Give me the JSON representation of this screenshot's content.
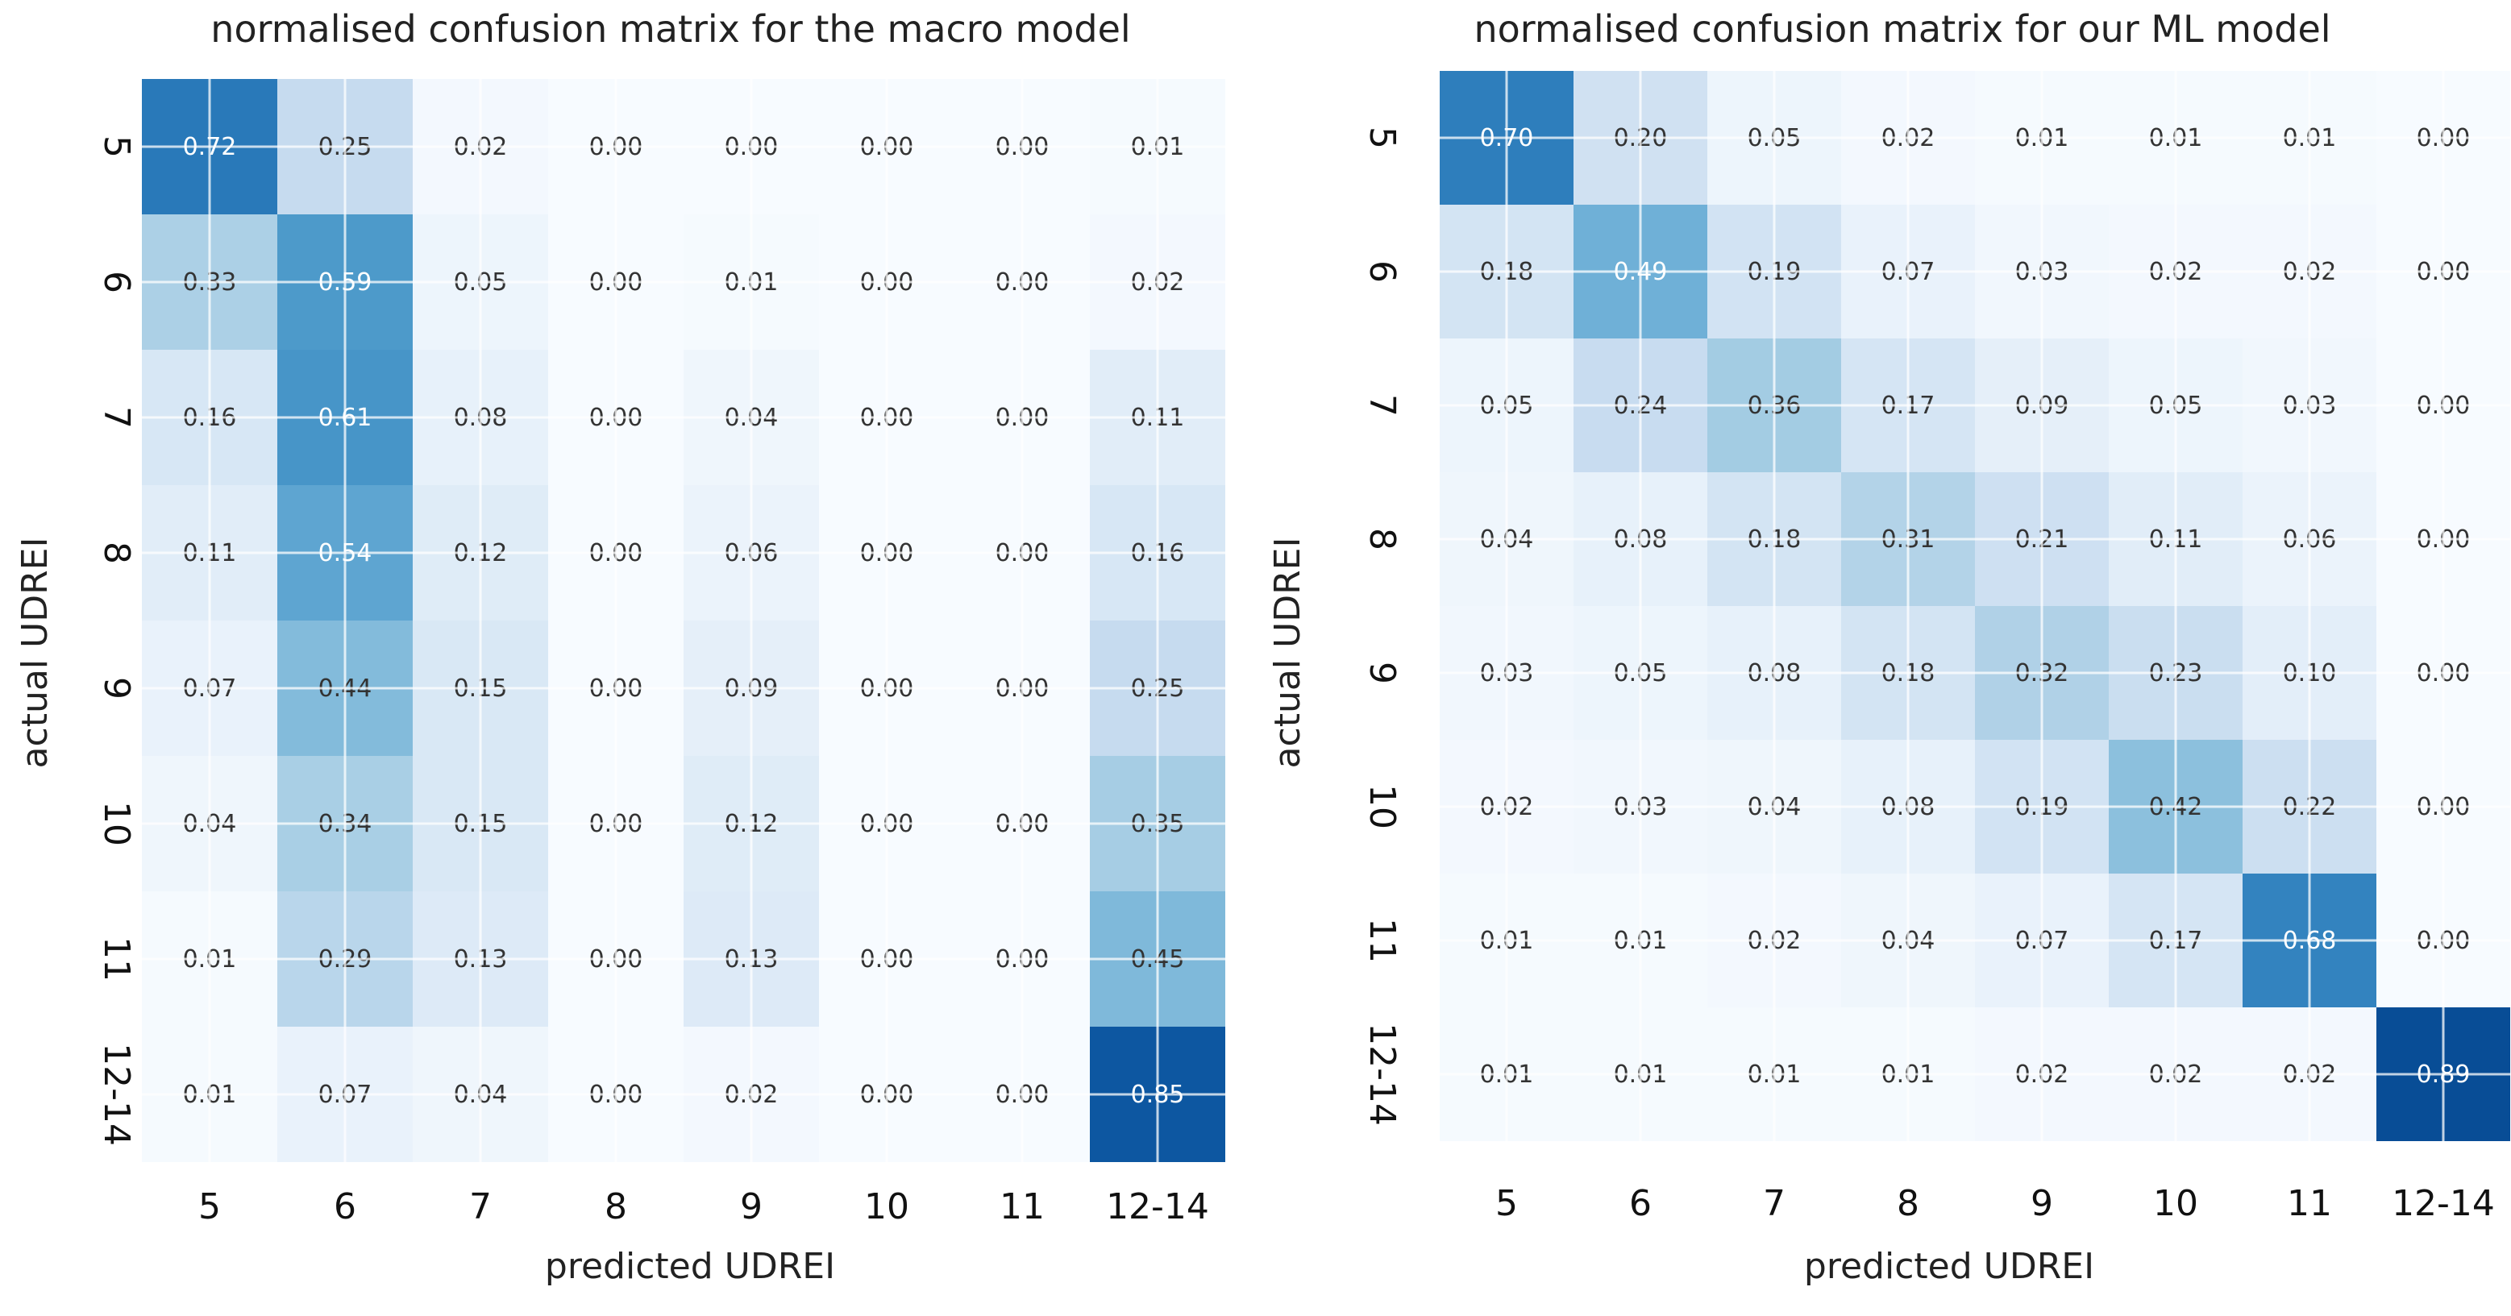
{
  "chart_data": [
    {
      "type": "heatmap",
      "title": "normalised confusion matrix for the macro model",
      "xlabel": "predicted UDREI",
      "ylabel": "actual UDREI",
      "x_categories": [
        "5",
        "6",
        "7",
        "8",
        "9",
        "10",
        "11",
        "12-14"
      ],
      "y_categories": [
        "5",
        "6",
        "7",
        "8",
        "9",
        "10",
        "11",
        "12-14"
      ],
      "colormap": "Blues",
      "value_range": [
        0,
        1
      ],
      "values": [
        [
          0.72,
          0.25,
          0.02,
          0.0,
          0.0,
          0.0,
          0.0,
          0.01
        ],
        [
          0.33,
          0.59,
          0.05,
          0.0,
          0.01,
          0.0,
          0.0,
          0.02
        ],
        [
          0.16,
          0.61,
          0.08,
          0.0,
          0.04,
          0.0,
          0.0,
          0.11
        ],
        [
          0.11,
          0.54,
          0.12,
          0.0,
          0.06,
          0.0,
          0.0,
          0.16
        ],
        [
          0.07,
          0.44,
          0.15,
          0.0,
          0.09,
          0.0,
          0.0,
          0.25
        ],
        [
          0.04,
          0.34,
          0.15,
          0.0,
          0.12,
          0.0,
          0.0,
          0.35
        ],
        [
          0.01,
          0.29,
          0.13,
          0.0,
          0.13,
          0.0,
          0.0,
          0.45
        ],
        [
          0.01,
          0.07,
          0.04,
          0.0,
          0.02,
          0.0,
          0.0,
          0.85
        ]
      ]
    },
    {
      "type": "heatmap",
      "title": "normalised confusion matrix for our ML model",
      "xlabel": "predicted UDREI",
      "ylabel": "actual UDREI",
      "x_categories": [
        "5",
        "6",
        "7",
        "8",
        "9",
        "10",
        "11",
        "12-14"
      ],
      "y_categories": [
        "5",
        "6",
        "7",
        "8",
        "9",
        "10",
        "11",
        "12-14"
      ],
      "colormap": "Blues",
      "value_range": [
        0,
        1
      ],
      "values": [
        [
          0.7,
          0.2,
          0.05,
          0.02,
          0.01,
          0.01,
          0.01,
          0.0
        ],
        [
          0.18,
          0.49,
          0.19,
          0.07,
          0.03,
          0.02,
          0.02,
          0.0
        ],
        [
          0.05,
          0.24,
          0.36,
          0.17,
          0.09,
          0.05,
          0.03,
          0.0
        ],
        [
          0.04,
          0.08,
          0.18,
          0.31,
          0.21,
          0.11,
          0.06,
          0.0
        ],
        [
          0.03,
          0.05,
          0.08,
          0.18,
          0.32,
          0.23,
          0.1,
          0.0
        ],
        [
          0.02,
          0.03,
          0.04,
          0.08,
          0.19,
          0.42,
          0.22,
          0.0
        ],
        [
          0.01,
          0.01,
          0.02,
          0.04,
          0.07,
          0.17,
          0.68,
          0.0
        ],
        [
          0.01,
          0.01,
          0.01,
          0.01,
          0.02,
          0.02,
          0.02,
          0.89
        ]
      ]
    }
  ]
}
